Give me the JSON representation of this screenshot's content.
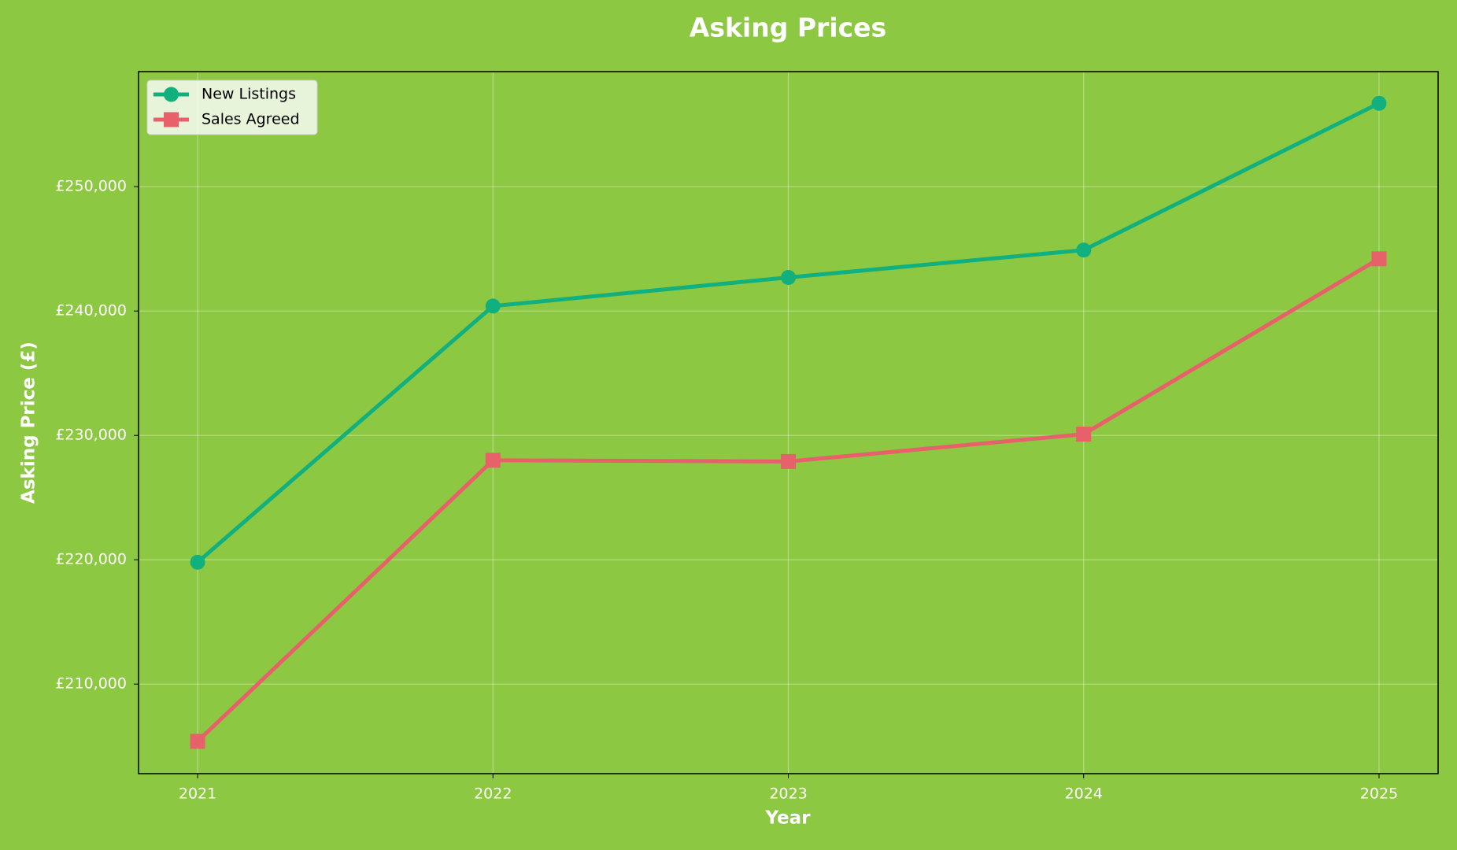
{
  "chart_data": {
    "type": "line",
    "title": "Asking Prices",
    "x_label": "Year",
    "y_label": "Asking Price (£)",
    "x": [
      2021,
      2022,
      2023,
      2024,
      2025
    ],
    "series": [
      {
        "name": "New Listings",
        "color": "#12b07e",
        "marker": "circle",
        "values": [
          219800,
          240400,
          242700,
          244900,
          256700
        ]
      },
      {
        "name": "Sales Agreed",
        "color": "#e8606a",
        "marker": "square",
        "values": [
          205400,
          228000,
          227900,
          230100,
          244200
        ]
      }
    ],
    "xlim": [
      2020.8,
      2025.2
    ],
    "xticks": [
      2021,
      2022,
      2023,
      2024,
      2025
    ],
    "ylim": [
      202800,
      259250
    ],
    "yticks": [
      {
        "value": 210000,
        "label": "£210,000"
      },
      {
        "value": 220000,
        "label": "£220,000"
      },
      {
        "value": 230000,
        "label": "£230,000"
      },
      {
        "value": 240000,
        "label": "£240,000"
      },
      {
        "value": 250000,
        "label": "£250,000"
      }
    ],
    "grid": true,
    "legend": "upper left",
    "background": "#8dc843"
  }
}
